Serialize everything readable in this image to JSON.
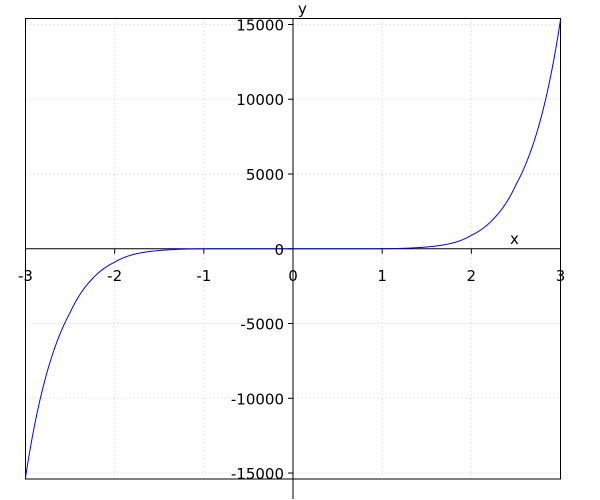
{
  "chart_data": {
    "type": "line",
    "title": "",
    "xlabel": "x",
    "ylabel": "y",
    "xlim": [
      -3,
      3
    ],
    "ylim": [
      -15400,
      15400
    ],
    "grid": true,
    "x_ticks": [
      -3,
      -2,
      -1,
      0,
      1,
      2,
      3
    ],
    "x_tick_labels": [
      "-3",
      "-2",
      "-1",
      "0",
      "1",
      "2",
      "3"
    ],
    "y_ticks": [
      -15000,
      -10000,
      -5000,
      0,
      5000,
      10000,
      15000
    ],
    "y_tick_labels": [
      "-15000",
      "-10000",
      "-5000",
      "0",
      "5000",
      "10000",
      "15000"
    ],
    "series": [
      {
        "color": "#0000ff",
        "x": [
          -3,
          -2.75,
          -2.5,
          -2.25,
          -2,
          -1.75,
          -1.5,
          -1.25,
          -1,
          -0.5,
          0,
          0.5,
          1,
          1.25,
          1.5,
          1.75,
          2,
          2.25,
          2.5,
          2.75,
          3
        ],
        "y": [
          -15309,
          -8082,
          -4272,
          -2007,
          -896,
          -328,
          -120,
          -33,
          -7,
          -0.05,
          0,
          0.05,
          7,
          33,
          120,
          328,
          896,
          2007,
          4272,
          8082,
          15309
        ]
      }
    ]
  }
}
